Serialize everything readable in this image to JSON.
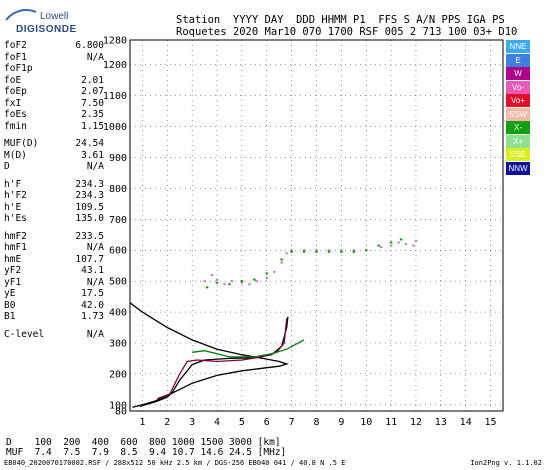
{
  "logo": {
    "line1": "Lowell",
    "line2": "DIGISONDE"
  },
  "header": {
    "line1": "Station  YYYY DAY  DDD HHMM P1  FFS S A/N PPS IGA PS",
    "line2": "Roquetes 2020 Mar10 070 1700 RSF 005 2 713 100 03+ D10"
  },
  "params": [
    {
      "k": "foF2",
      "v": "6.800"
    },
    {
      "k": "foF1",
      "v": "N/A"
    },
    {
      "k": "foF1p",
      "v": ""
    },
    {
      "k": "foE",
      "v": "2.01"
    },
    {
      "k": "foEp",
      "v": "2.07"
    },
    {
      "k": "fxI",
      "v": "7.50"
    },
    {
      "k": "foEs",
      "v": "2.35"
    },
    {
      "k": "fmin",
      "v": "1.15"
    },
    {
      "k": "MUF(D)",
      "v": "24.54"
    },
    {
      "k": "M(D)",
      "v": "3.61"
    },
    {
      "k": "D",
      "v": "N/A"
    },
    {
      "k": "h'F",
      "v": "234.3"
    },
    {
      "k": "h'F2",
      "v": "234.3"
    },
    {
      "k": "h'E",
      "v": "109.5"
    },
    {
      "k": "h'Es",
      "v": "135.0"
    },
    {
      "k": "hmF2",
      "v": "233.5"
    },
    {
      "k": "hmF1",
      "v": "N/A"
    },
    {
      "k": "hmE",
      "v": "107.7"
    },
    {
      "k": "yF2",
      "v": "43.1"
    },
    {
      "k": "yF1",
      "v": "N/A"
    },
    {
      "k": "yE",
      "v": "17.5"
    },
    {
      "k": "B0",
      "v": "42.0"
    },
    {
      "k": "B1",
      "v": "1.73"
    },
    {
      "k": "C-level",
      "v": "N/A"
    }
  ],
  "legend": [
    {
      "label": "NNE",
      "bg": "#3fa9f5",
      "fg": "#ffffff"
    },
    {
      "label": "E",
      "bg": "#3f7fe0",
      "fg": "#ffffff"
    },
    {
      "label": "W",
      "bg": "#b0008a",
      "fg": "#ffffff"
    },
    {
      "label": "Vo-",
      "bg": "#e85ab8",
      "fg": "#ffffff"
    },
    {
      "label": "Vo+",
      "bg": "#e0102a",
      "fg": "#ffffff"
    },
    {
      "label": "SSW",
      "bg": "#f2b8a8",
      "fg": "#ffffff"
    },
    {
      "label": "X-",
      "bg": "#10a010",
      "fg": "#ffffff"
    },
    {
      "label": "X+",
      "bg": "#8fe08f",
      "fg": "#ffffff"
    },
    {
      "label": "SSE",
      "bg": "#d8f020",
      "fg": "#ffffff"
    },
    {
      "label": "NNW",
      "bg": "#1010a0",
      "fg": "#ffffff"
    }
  ],
  "axes": {
    "y_ticks": [
      "80",
      "100",
      "200",
      "300",
      "400",
      "500",
      "600",
      "700",
      "800",
      "900",
      "1000",
      "1100",
      "1200",
      "1280"
    ],
    "x_ticks": [
      "1",
      "2",
      "3",
      "4",
      "5",
      "6",
      "7",
      "8",
      "9",
      "10",
      "11",
      "12",
      "13",
      "14",
      "15"
    ]
  },
  "footer": {
    "d_line": "D    100  200  400  600  800 1000 1500 3000 [km]",
    "muf_line": "MUF  7.4  7.5  7.9  8.5  9.4 10.7 14.6 24.5 [MHz]",
    "file_line": "EB040_2020070170002.RSF / 288x512 50 kHz 2.5 km / DGS-256 EB040 041 / 40.8 N .5 E",
    "version": "Ion2Png v. 1.1.02"
  },
  "chart_data": {
    "type": "scatter",
    "x_range": [
      0.5,
      15.5
    ],
    "y_range": [
      80,
      1280
    ],
    "traces": [
      {
        "name": "",
        "color": "#000000",
        "kind": "line",
        "points": [
          [
            0.5,
            430
          ],
          [
            1.0,
            400
          ],
          [
            2.0,
            350
          ],
          [
            3.0,
            310
          ],
          [
            4.0,
            280
          ],
          [
            5.0,
            262
          ],
          [
            6.0,
            248
          ],
          [
            6.5,
            240
          ],
          [
            6.8,
            232
          ],
          [
            6.5,
            225
          ],
          [
            6.0,
            220
          ],
          [
            5.0,
            210
          ],
          [
            4.0,
            195
          ],
          [
            3.0,
            170
          ],
          [
            2.5,
            150
          ],
          [
            2.0,
            130
          ],
          [
            1.5,
            112
          ],
          [
            1.0,
            100
          ],
          [
            0.6,
            92
          ]
        ]
      },
      {
        "name": "",
        "color": "#000000",
        "kind": "line",
        "points": [
          [
            0.9,
            95
          ],
          [
            1.6,
            112
          ],
          [
            2.0,
            125
          ],
          [
            2.2,
            140
          ],
          [
            2.5,
            180
          ],
          [
            3.0,
            230
          ],
          [
            3.5,
            245
          ],
          [
            4.5,
            250
          ],
          [
            5.5,
            252
          ],
          [
            6.2,
            262
          ],
          [
            6.6,
            290
          ],
          [
            6.8,
            350
          ],
          [
            6.85,
            385
          ]
        ]
      },
      {
        "name": "",
        "color": "#800040",
        "kind": "line",
        "points": [
          [
            1.6,
            120
          ],
          [
            2.1,
            135
          ],
          [
            2.5,
            200
          ],
          [
            2.8,
            240
          ],
          [
            3.2,
            245
          ],
          [
            4.0,
            240
          ],
          [
            5.0,
            245
          ],
          [
            5.8,
            255
          ],
          [
            6.4,
            270
          ],
          [
            6.7,
            300
          ],
          [
            6.8,
            380
          ]
        ]
      },
      {
        "name": "",
        "color": "#008000",
        "kind": "line",
        "points": [
          [
            3.0,
            270
          ],
          [
            3.5,
            275
          ],
          [
            4.0,
            265
          ],
          [
            4.5,
            255
          ],
          [
            5.5,
            255
          ],
          [
            6.2,
            265
          ],
          [
            6.8,
            280
          ],
          [
            7.5,
            310
          ]
        ]
      },
      {
        "name": "",
        "color": "#c080c0",
        "kind": "dots",
        "points": [
          [
            3.5,
            500
          ],
          [
            3.8,
            520
          ],
          [
            4.0,
            505
          ],
          [
            4.3,
            490
          ],
          [
            4.6,
            500
          ],
          [
            5.0,
            495
          ],
          [
            5.3,
            490
          ],
          [
            5.6,
            500
          ],
          [
            6.0,
            510
          ],
          [
            6.3,
            530
          ],
          [
            6.6,
            560
          ],
          [
            6.8,
            590
          ],
          [
            7.0,
            600
          ],
          [
            7.5,
            600
          ],
          [
            8.0,
            600
          ],
          [
            8.5,
            600
          ],
          [
            9.0,
            600
          ],
          [
            9.5,
            600
          ],
          [
            10.0,
            600
          ],
          [
            10.6,
            610
          ],
          [
            11.0,
            615
          ],
          [
            11.3,
            625
          ],
          [
            11.6,
            620
          ],
          [
            11.9,
            615
          ],
          [
            12.0,
            630
          ]
        ]
      },
      {
        "name": "",
        "color": "#00a000",
        "kind": "dots",
        "points": [
          [
            3.6,
            480
          ],
          [
            4.0,
            495
          ],
          [
            4.5,
            490
          ],
          [
            5.0,
            500
          ],
          [
            5.5,
            505
          ],
          [
            6.0,
            525
          ],
          [
            6.6,
            570
          ],
          [
            7.0,
            595
          ],
          [
            7.5,
            595
          ],
          [
            8.0,
            595
          ],
          [
            8.5,
            595
          ],
          [
            9.0,
            595
          ],
          [
            9.5,
            595
          ],
          [
            10.0,
            600
          ],
          [
            10.5,
            615
          ],
          [
            11.0,
            625
          ],
          [
            11.4,
            635
          ]
        ]
      }
    ]
  }
}
